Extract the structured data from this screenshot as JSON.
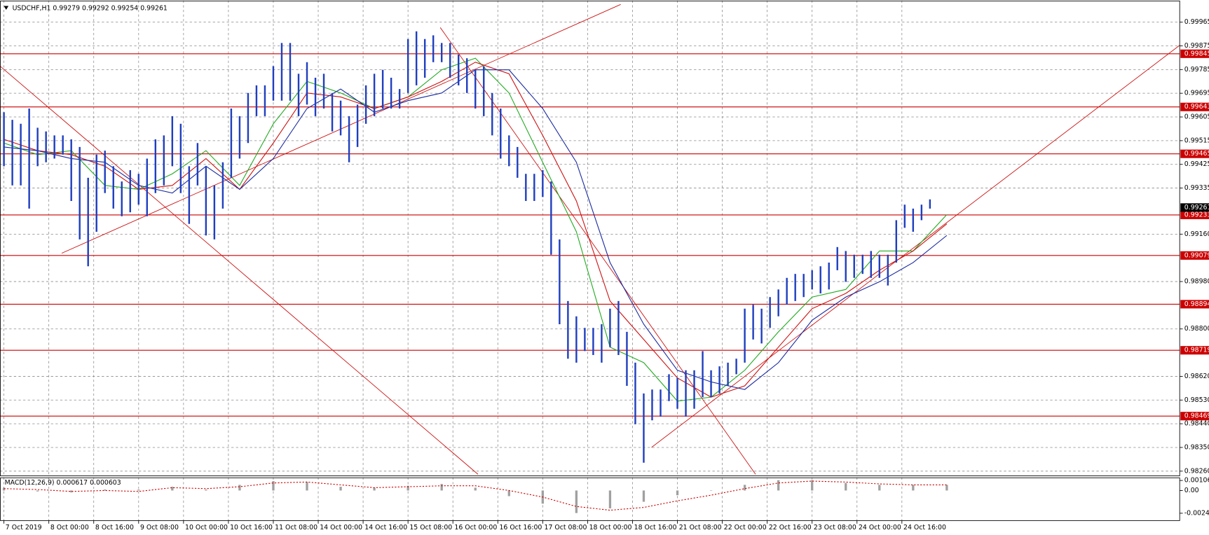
{
  "chart_data": {
    "type": "ohlc",
    "title": "USDCHF,H1  0.99279 0.99292 0.99254 0.99261",
    "color": "#1f3fbf",
    "x": [
      0,
      3,
      6,
      9,
      12,
      15,
      18,
      21,
      24,
      27,
      30,
      33,
      36,
      39,
      42,
      45,
      48,
      51,
      54,
      57,
      60,
      63,
      66,
      69,
      72,
      75,
      78,
      81,
      84,
      87,
      90,
      93,
      96,
      99,
      102,
      105,
      108,
      111,
      114,
      117,
      120,
      123,
      126,
      129,
      132,
      135,
      138,
      141,
      144,
      147,
      150,
      153,
      156,
      159,
      162,
      165,
      168,
      171,
      174,
      177,
      180,
      183,
      186,
      189,
      192,
      195,
      198,
      201,
      204,
      207,
      210,
      213,
      216,
      219,
      222,
      225,
      228,
      231,
      234,
      237,
      240,
      243,
      246,
      249,
      252,
      255,
      258,
      261,
      264,
      267,
      270,
      273,
      276,
      279,
      282,
      285,
      288,
      291,
      294,
      297,
      300,
      303,
      306,
      309,
      312,
      315,
      318,
      321,
      324,
      327,
      330
    ],
    "high": [
      0.99623,
      0.99594,
      0.99579,
      0.99637,
      0.99564,
      0.9955,
      0.99535,
      0.99535,
      0.9952,
      0.99491,
      0.99374,
      0.99462,
      0.99477,
      0.99418,
      0.9936,
      0.99403,
      0.99389,
      0.99447,
      0.9952,
      0.99535,
      0.99608,
      0.99579,
      0.99418,
      0.99506,
      0.99418,
      0.99345,
      0.99433,
      0.99637,
      0.99608,
      0.99696,
      0.99725,
      0.99725,
      0.99798,
      0.99886,
      0.99886,
      0.99769,
      0.99813,
      0.99754,
      0.99769,
      0.99696,
      0.99667,
      0.99608,
      0.99652,
      0.99725,
      0.99769,
      0.99784,
      0.99754,
      0.99711,
      0.99901,
      0.9993,
      0.99901,
      0.99915,
      0.99886,
      0.99886,
      0.99842,
      0.99828,
      0.99784,
      0.99798,
      0.99696,
      0.99637,
      0.99535,
      0.99491,
      0.99389,
      0.99389,
      0.99403,
      0.9936,
      0.9914,
      0.98906,
      0.98848,
      0.98804,
      0.98804,
      0.98818,
      0.98877,
      0.98906,
      0.98789,
      0.98672,
      0.98555,
      0.9857,
      0.9857,
      0.98628,
      0.98614,
      0.98643,
      0.98643,
      0.98716,
      0.98643,
      0.98658,
      0.98672,
      0.98687,
      0.98877,
      0.98892,
      0.98877,
      0.98921,
      0.9895,
      0.98994,
      0.99009,
      0.99009,
      0.99023,
      0.99038,
      0.99052,
      0.99111,
      0.99096,
      0.99082,
      0.99082,
      0.99096,
      0.99082,
      0.99082,
      0.99213,
      0.99272,
      0.99257,
      0.99272,
      0.99292
    ],
    "low": [
      0.99418,
      0.99345,
      0.99345,
      0.99257,
      0.99418,
      0.99433,
      0.99447,
      0.99462,
      0.99286,
      0.9914,
      0.99038,
      0.99169,
      0.99316,
      0.99257,
      0.99228,
      0.99243,
      0.99272,
      0.99228,
      0.99316,
      0.99345,
      0.99418,
      0.99316,
      0.99199,
      0.99345,
      0.99155,
      0.9914,
      0.99257,
      0.99374,
      0.99447,
      0.99506,
      0.99608,
      0.99608,
      0.99667,
      0.99667,
      0.99667,
      0.99608,
      0.99652,
      0.99608,
      0.99637,
      0.9955,
      0.99535,
      0.99433,
      0.99491,
      0.99579,
      0.99608,
      0.99637,
      0.99637,
      0.99637,
      0.99696,
      0.99725,
      0.99754,
      0.99813,
      0.99813,
      0.99754,
      0.99725,
      0.99696,
      0.99637,
      0.99608,
      0.99535,
      0.99447,
      0.99418,
      0.99374,
      0.99286,
      0.99286,
      0.99301,
      0.99082,
      0.98818,
      0.98687,
      0.98672,
      0.98716,
      0.98701,
      0.98672,
      0.98731,
      0.98701,
      0.98584,
      0.98438,
      0.98292,
      0.98453,
      0.98467,
      0.98526,
      0.98497,
      0.98467,
      0.98497,
      0.98541,
      0.98541,
      0.98555,
      0.98584,
      0.98628,
      0.98672,
      0.9876,
      0.98745,
      0.98804,
      0.98848,
      0.98892,
      0.98906,
      0.98921,
      0.9895,
      0.98935,
      0.9895,
      0.99023,
      0.98979,
      0.98994,
      0.99009,
      0.98994,
      0.98994,
      0.98965,
      0.99052,
      0.99184,
      0.99169,
      0.99213,
      0.99257
    ],
    "xlim": [
      -1.4,
      419
    ],
    "xticks": [
      {
        "value": 0,
        "label": "7 Oct 2019"
      },
      {
        "value": 16,
        "label": "8 Oct 00:00"
      },
      {
        "value": 32,
        "label": "8 Oct 16:00"
      },
      {
        "value": 48,
        "label": "9 Oct 08:00"
      },
      {
        "value": 64,
        "label": "10 Oct 00:00"
      },
      {
        "value": 80,
        "label": "10 Oct 16:00"
      },
      {
        "value": 96,
        "label": "11 Oct 08:00"
      },
      {
        "value": 112,
        "label": "14 Oct 00:00"
      },
      {
        "value": 128,
        "label": "14 Oct 16:00"
      },
      {
        "value": 144,
        "label": "15 Oct 08:00"
      },
      {
        "value": 160,
        "label": "16 Oct 00:00"
      },
      {
        "value": 176,
        "label": "16 Oct 16:00"
      },
      {
        "value": 192,
        "label": "17 Oct 08:00"
      },
      {
        "value": 208,
        "label": "18 Oct 00:00"
      },
      {
        "value": 224,
        "label": "18 Oct 16:00"
      },
      {
        "value": 240,
        "label": "21 Oct 08:00"
      },
      {
        "value": 256,
        "label": "22 Oct 00:00"
      },
      {
        "value": 272,
        "label": "22 Oct 16:00"
      },
      {
        "value": 288,
        "label": "23 Oct 08:00"
      },
      {
        "value": 304,
        "label": "24 Oct 00:00"
      },
      {
        "value": 320,
        "label": "24 Oct 16:00"
      }
    ],
    "ylim": [
      0.98242,
      1.00047
    ],
    "yticks": [
      0.99965,
      0.99875,
      0.99785,
      0.99695,
      0.99605,
      0.99515,
      0.99425,
      0.99335,
      {
        "value": 0.9916,
        "label": "0.99160"
      },
      {
        "value": 0.9898,
        "label": "0.98980"
      },
      {
        "value": 0.988,
        "label": "0.98800"
      },
      {
        "value": 0.9862,
        "label": "0.98620"
      },
      {
        "value": 0.9853,
        "label": "0.98530"
      },
      {
        "value": 0.9844,
        "label": "0.98440"
      },
      {
        "value": 0.9835,
        "label": "0.98350"
      },
      {
        "value": 0.9826,
        "label": "0.98260"
      }
    ],
    "grid": true,
    "levels": [
      0.99845,
      0.99643,
      0.99465,
      0.99233,
      0.99079,
      0.98894,
      0.98719,
      0.98469
    ],
    "level_color": "#cc0000",
    "last_price": 0.99261,
    "moving_averages": [
      {
        "color": "#22aa22",
        "x": [
          0,
          12,
          24,
          36,
          48,
          60,
          72,
          84,
          96,
          108,
          120,
          132,
          144,
          156,
          168,
          180,
          192,
          204,
          216,
          228,
          240,
          252,
          264,
          276,
          288,
          300,
          312,
          324,
          336
        ],
        "values": [
          0.99506,
          0.99462,
          0.99477,
          0.99345,
          0.9933,
          0.99389,
          0.99477,
          0.99345,
          0.99579,
          0.9974,
          0.99696,
          0.99637,
          0.99681,
          0.99784,
          0.99828,
          0.99696,
          0.99433,
          0.99169,
          0.98731,
          0.98672,
          0.98526,
          0.98541,
          0.98643,
          0.98789,
          0.98921,
          0.9895,
          0.99096,
          0.99096,
          0.99234
        ]
      },
      {
        "color": "#cc1111",
        "x": [
          0,
          12,
          24,
          36,
          48,
          60,
          72,
          84,
          96,
          108,
          120,
          132,
          144,
          156,
          168,
          180,
          192,
          204,
          216,
          228,
          240,
          252,
          264,
          276,
          288,
          300,
          312,
          324,
          336
        ],
        "values": [
          0.9952,
          0.99477,
          0.99462,
          0.99418,
          0.9933,
          0.99345,
          0.99447,
          0.9933,
          0.99506,
          0.99696,
          0.99681,
          0.99637,
          0.99681,
          0.9974,
          0.99813,
          0.99769,
          0.99535,
          0.99286,
          0.98906,
          0.9876,
          0.98614,
          0.98541,
          0.98584,
          0.98731,
          0.98877,
          0.98935,
          0.99023,
          0.99096,
          0.99199
        ]
      },
      {
        "color": "#1a2aa0",
        "x": [
          0,
          12,
          24,
          36,
          48,
          60,
          72,
          84,
          96,
          108,
          120,
          132,
          144,
          156,
          168,
          180,
          192,
          204,
          216,
          228,
          240,
          252,
          264,
          276,
          288,
          300,
          312,
          324,
          336
        ],
        "values": [
          0.99491,
          0.99477,
          0.99447,
          0.99433,
          0.99345,
          0.99316,
          0.99418,
          0.9933,
          0.99447,
          0.99637,
          0.99711,
          0.99623,
          0.99667,
          0.99696,
          0.99784,
          0.99784,
          0.99637,
          0.99433,
          0.99052,
          0.98818,
          0.98643,
          0.98599,
          0.9857,
          0.98672,
          0.98833,
          0.98921,
          0.98979,
          0.99052,
          0.99155
        ]
      }
    ],
    "indicator": {
      "type": "macd",
      "label": "MACD(12,26,9) 0.000617 0.000603",
      "x": [
        0,
        12,
        24,
        36,
        48,
        60,
        72,
        84,
        96,
        108,
        120,
        132,
        144,
        156,
        168,
        180,
        192,
        204,
        216,
        228,
        240,
        252,
        264,
        276,
        288,
        300,
        312,
        324,
        336
      ],
      "histogram": [
        0.0003,
        -0.0001,
        -0.0002,
        0.0001,
        0.0001,
        0.0004,
        0.0001,
        0.0006,
        0.001,
        0.0009,
        0.0004,
        0.0003,
        0.0005,
        0.0007,
        0.0003,
        -0.0006,
        -0.0014,
        -0.0024,
        -0.0019,
        -0.0012,
        -0.0005,
        0,
        0.0006,
        0.0011,
        0.0011,
        0.0008,
        0.0006,
        0.0006,
        0.0006
      ],
      "signal": [
        0.0002,
        0.0001,
        -0.0001,
        0,
        -0.0001,
        0.0003,
        0.0002,
        0.0004,
        0.0008,
        0.0009,
        0.0006,
        0.0003,
        0.0004,
        0.0005,
        0.0005,
        0,
        -0.0007,
        -0.0017,
        -0.0021,
        -0.0018,
        -0.0011,
        -0.0005,
        0.0002,
        0.0008,
        0.001,
        0.0009,
        0.0007,
        0.0006,
        0.0006
      ],
      "histogram_color": "#a0a0a0",
      "signal_color": "#cc0000",
      "ylim": [
        -0.0032,
        0.00139
      ],
      "yticks": [
        0.001066,
        {
          "value": 0,
          "label": "0.00"
        },
        -0.00242
      ]
    }
  }
}
